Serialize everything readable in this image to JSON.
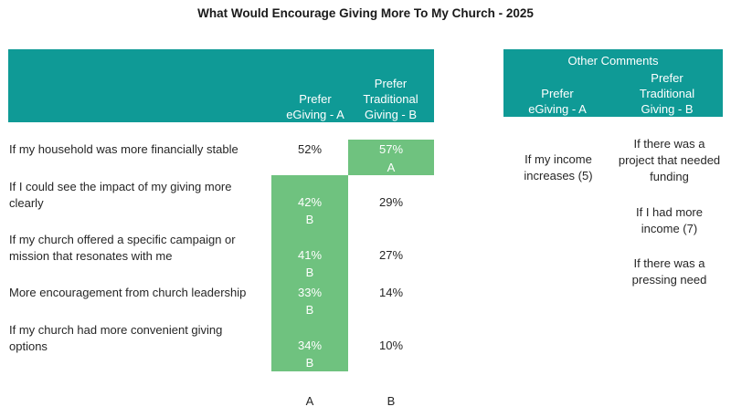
{
  "chart_data": {
    "type": "table",
    "title": "What Would Encourage Giving More To My Church - 2025",
    "columns": [
      {
        "key": "A",
        "label": "Prefer eGiving - A"
      },
      {
        "key": "B",
        "label": "Prefer Traditional Giving - B"
      }
    ],
    "colors": {
      "header": "#0f9a96",
      "highlight": "#6fc27f"
    },
    "rows": [
      {
        "label": "If my household was more financially stable",
        "a": "52%",
        "b": "57%",
        "a_sig": "",
        "b_sig": "A"
      },
      {
        "label": "If I could see the impact of my giving more clearly",
        "a": "42%",
        "b": "29%",
        "a_sig": "B",
        "b_sig": ""
      },
      {
        "label": "If my church offered a specific campaign or mission that resonates with me",
        "a": "41%",
        "b": "27%",
        "a_sig": "B",
        "b_sig": ""
      },
      {
        "label": "More encouragement from church leadership",
        "a": "33%",
        "b": "14%",
        "a_sig": "B",
        "b_sig": ""
      },
      {
        "label": "If my church had more convenient giving options",
        "a": "34%",
        "b": "10%",
        "a_sig": "B",
        "b_sig": ""
      }
    ],
    "footer": [
      "A",
      "B"
    ]
  },
  "header": {
    "col_a_line1": "Prefer",
    "col_a_line2": "eGiving - A",
    "col_b_line1": "Prefer",
    "col_b_line2": "Traditional",
    "col_b_line3": "Giving - B"
  },
  "rows_text": {
    "r1_line1": "If my household was more financially stable",
    "r2_line1": "If I could see the impact of my giving more",
    "r2_line2": "clearly",
    "r3_line1": "If my church offered a specific campaign or",
    "r3_line2": "mission that resonates with me",
    "r4_line1": "More encouragement from church leadership",
    "r5_line1": "If my church had more convenient giving",
    "r5_line2": "options"
  },
  "comments": {
    "title": "Other Comments",
    "col_a_line1": "Prefer",
    "col_a_line2": "eGiving - A",
    "col_b_line1": "Prefer",
    "col_b_line2": "Traditional",
    "col_b_line3": "Giving - B",
    "a1_line1": "If my income",
    "a1_line2": "increases (5)",
    "b1_line1": "If there was a",
    "b1_line2": "project that needed",
    "b1_line3": "funding",
    "b2_line1": "If I had more",
    "b2_line2": "income (7)",
    "b3_line1": "If there was a",
    "b3_line2": "pressing need"
  }
}
